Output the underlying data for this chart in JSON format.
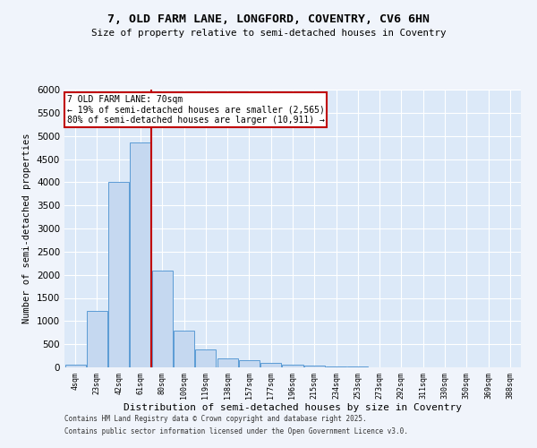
{
  "title1": "7, OLD FARM LANE, LONGFORD, COVENTRY, CV6 6HN",
  "title2": "Size of property relative to semi-detached houses in Coventry",
  "xlabel": "Distribution of semi-detached houses by size in Coventry",
  "ylabel": "Number of semi-detached properties",
  "categories": [
    "4sqm",
    "23sqm",
    "42sqm",
    "61sqm",
    "80sqm",
    "100sqm",
    "119sqm",
    "138sqm",
    "157sqm",
    "177sqm",
    "196sqm",
    "215sqm",
    "234sqm",
    "253sqm",
    "273sqm",
    "292sqm",
    "311sqm",
    "330sqm",
    "350sqm",
    "369sqm",
    "388sqm"
  ],
  "values": [
    60,
    1220,
    4000,
    4850,
    2100,
    800,
    380,
    190,
    150,
    100,
    50,
    30,
    20,
    10,
    5,
    3,
    2,
    1,
    1,
    0,
    0
  ],
  "bar_color": "#c5d8f0",
  "bar_edge_color": "#5b9bd5",
  "vline_x": 3.5,
  "vline_color": "#c00000",
  "annotation_title": "7 OLD FARM LANE: 70sqm",
  "annotation_line1": "← 19% of semi-detached houses are smaller (2,565)",
  "annotation_line2": "80% of semi-detached houses are larger (10,911) →",
  "annotation_box_color": "#c00000",
  "ylim": [
    0,
    6000
  ],
  "yticks": [
    0,
    500,
    1000,
    1500,
    2000,
    2500,
    3000,
    3500,
    4000,
    4500,
    5000,
    5500,
    6000
  ],
  "footnote1": "Contains HM Land Registry data © Crown copyright and database right 2025.",
  "footnote2": "Contains public sector information licensed under the Open Government Licence v3.0.",
  "fig_bg_color": "#f0f4fb",
  "ax_bg_color": "#dce9f8",
  "grid_color": "#ffffff"
}
